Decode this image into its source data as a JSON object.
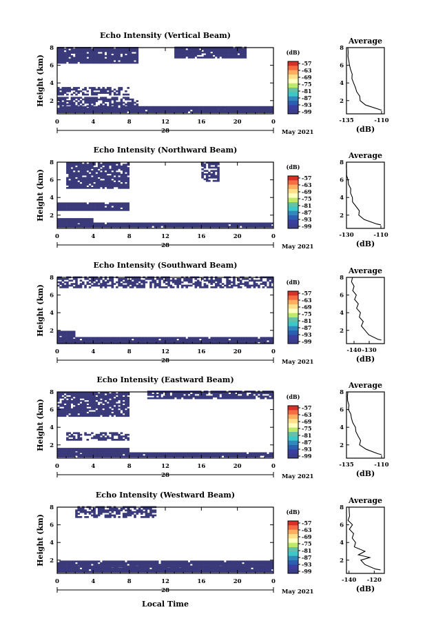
{
  "figure": {
    "time_axis_label": "Local Time",
    "month_label": "May 2021",
    "day_label": "28",
    "height_label": "Height (km)",
    "colorbar_unit": "(dB)",
    "colorbar_ticks": [
      "-57",
      "-63",
      "-69",
      "-75",
      "-81",
      "-87",
      "-93",
      "-99"
    ],
    "colorbar_colors": [
      "#d73027",
      "#f46d43",
      "#fdae61",
      "#fee08b",
      "#ffffbf",
      "#bfe96b",
      "#66c2a5",
      "#3ec7c7",
      "#3288bd",
      "#2b60b0",
      "#3a3fa0",
      "#3b3c8a"
    ],
    "profile_title": "Average",
    "profile_xlabel": "(dB)",
    "echo_color": "#3a3a7a"
  },
  "chart_data": [
    {
      "type": "heatmap",
      "title": "Echo Intensity (Vertical Beam)",
      "xlabel": "",
      "ylabel": "Height (km)",
      "xlim": [
        0,
        24
      ],
      "ylim": [
        0.5,
        8
      ],
      "xticks": [
        "0",
        "4",
        "8",
        "12",
        "16",
        "20",
        "0"
      ],
      "yticks": [
        "2",
        "4",
        "6",
        "8"
      ],
      "echo_regions": [
        {
          "t0": 0,
          "t1": 24,
          "h0": 0.6,
          "h1": 1.0
        },
        {
          "t0": 0,
          "t1": 24,
          "h0": 1.0,
          "h1": 1.3
        },
        {
          "t0": 0,
          "t1": 9,
          "h0": 1.3,
          "h1": 2.3
        },
        {
          "t0": 0,
          "t1": 8,
          "h0": 2.6,
          "h1": 3.5
        },
        {
          "t0": 0,
          "t1": 9,
          "h0": 6.2,
          "h1": 8.0
        },
        {
          "t0": 13,
          "t1": 21,
          "h0": 6.8,
          "h1": 8.0
        }
      ],
      "profile": {
        "xlim": [
          -135,
          -108
        ],
        "xticks": [
          "-135",
          "-110"
        ],
        "yticks": [
          "2",
          "4",
          "6",
          "8"
        ],
        "h": [
          0.9,
          1.0,
          1.5,
          2.0,
          2.5,
          3.0,
          3.5,
          4.0,
          4.5,
          5.0,
          5.5,
          6.0,
          6.5,
          7.0,
          7.5,
          8.0
        ],
        "v": [
          -110,
          -112,
          -122,
          -126,
          -126,
          -128,
          -129,
          -130,
          -131,
          -131,
          -132,
          -133,
          -133,
          -134,
          -134,
          -134
        ]
      }
    },
    {
      "type": "heatmap",
      "title": "Echo Intensity (Northward Beam)",
      "xlabel": "",
      "ylabel": "Height (km)",
      "xlim": [
        0,
        24
      ],
      "ylim": [
        0.5,
        8
      ],
      "xticks": [
        "0",
        "4",
        "8",
        "12",
        "16",
        "20",
        "0"
      ],
      "yticks": [
        "2",
        "4",
        "6",
        "8"
      ],
      "echo_regions": [
        {
          "t0": 0,
          "t1": 24,
          "h0": 0.6,
          "h1": 1.1
        },
        {
          "t0": 0,
          "t1": 4,
          "h0": 1.1,
          "h1": 1.5
        },
        {
          "t0": 0,
          "t1": 8,
          "h0": 2.5,
          "h1": 3.4
        },
        {
          "t0": 1,
          "t1": 8,
          "h0": 5.0,
          "h1": 8.0
        },
        {
          "t0": 16,
          "t1": 18,
          "h0": 5.8,
          "h1": 8.0
        }
      ],
      "profile": {
        "xlim": [
          -130,
          -108
        ],
        "xticks": [
          "-130",
          "-110"
        ],
        "yticks": [
          "2",
          "4",
          "6",
          "8"
        ],
        "h": [
          0.9,
          1.0,
          1.5,
          2.0,
          2.5,
          3.0,
          3.5,
          4.0,
          4.5,
          5.0,
          5.5,
          6.0,
          6.5,
          7.0,
          7.5,
          8.0
        ],
        "v": [
          -110,
          -112,
          -120,
          -123,
          -123,
          -125,
          -126,
          -127,
          -128,
          -128,
          -129,
          -129,
          -130,
          -130,
          -130,
          -130
        ]
      }
    },
    {
      "type": "heatmap",
      "title": "Echo Intensity (Southward Beam)",
      "xlabel": "",
      "ylabel": "Height (km)",
      "xlim": [
        0,
        24
      ],
      "ylim": [
        0.5,
        8
      ],
      "xticks": [
        "0",
        "4",
        "8",
        "12",
        "16",
        "20",
        "0"
      ],
      "yticks": [
        "2",
        "4",
        "6",
        "8"
      ],
      "echo_regions": [
        {
          "t0": 0,
          "t1": 24,
          "h0": 0.5,
          "h1": 1.2
        },
        {
          "t0": 0,
          "t1": 2,
          "h0": 1.2,
          "h1": 1.8
        },
        {
          "t0": 0,
          "t1": 24,
          "h0": 6.8,
          "h1": 8.0
        }
      ],
      "profile": {
        "xlim": [
          -145,
          -120
        ],
        "xticks": [
          "-140",
          "-130"
        ],
        "yticks": [
          "2",
          "4",
          "6",
          "8"
        ],
        "h": [
          0.9,
          1.0,
          1.5,
          2.0,
          2.5,
          3.0,
          3.5,
          4.0,
          4.5,
          5.0,
          5.5,
          6.0,
          6.5,
          7.0,
          7.5,
          8.0
        ],
        "v": [
          -122,
          -125,
          -130,
          -133,
          -135,
          -134,
          -137,
          -136,
          -138,
          -137,
          -140,
          -139,
          -141,
          -140,
          -142,
          -141
        ]
      }
    },
    {
      "type": "heatmap",
      "title": "Echo Intensity (Eastward Beam)",
      "xlabel": "",
      "ylabel": "Height (km)",
      "xlim": [
        0,
        24
      ],
      "ylim": [
        0.5,
        8
      ],
      "xticks": [
        "0",
        "4",
        "8",
        "12",
        "16",
        "20",
        "0"
      ],
      "yticks": [
        "2",
        "4",
        "6",
        "8"
      ],
      "echo_regions": [
        {
          "t0": 0,
          "t1": 24,
          "h0": 0.6,
          "h1": 1.1
        },
        {
          "t0": 0,
          "t1": 8,
          "h0": 1.1,
          "h1": 1.6
        },
        {
          "t0": 1,
          "t1": 8,
          "h0": 2.5,
          "h1": 3.4
        },
        {
          "t0": 0,
          "t1": 8,
          "h0": 5.2,
          "h1": 8.0
        },
        {
          "t0": 10,
          "t1": 24,
          "h0": 7.2,
          "h1": 8.0
        }
      ],
      "profile": {
        "xlim": [
          -135,
          -108
        ],
        "xticks": [
          "-135",
          "-110"
        ],
        "yticks": [
          "2",
          "4",
          "6",
          "8"
        ],
        "h": [
          0.9,
          1.0,
          1.5,
          2.0,
          2.5,
          3.0,
          3.5,
          4.0,
          4.5,
          5.0,
          5.5,
          6.0,
          6.5,
          7.0,
          7.5,
          8.0
        ],
        "v": [
          -110,
          -112,
          -121,
          -125,
          -125,
          -127,
          -128,
          -129,
          -130,
          -131,
          -132,
          -133,
          -133,
          -134,
          -134,
          -134
        ]
      }
    },
    {
      "type": "heatmap",
      "title": "Echo Intensity (Westward Beam)",
      "xlabel": "Local Time",
      "ylabel": "Height (km)",
      "xlim": [
        0,
        24
      ],
      "ylim": [
        0.5,
        8
      ],
      "xticks": [
        "0",
        "4",
        "8",
        "12",
        "16",
        "20",
        "0"
      ],
      "yticks": [
        "2",
        "4",
        "6",
        "8"
      ],
      "echo_regions": [
        {
          "t0": 0,
          "t1": 24,
          "h0": 0.6,
          "h1": 1.2
        },
        {
          "t0": 0,
          "t1": 24,
          "h0": 1.2,
          "h1": 1.8
        },
        {
          "t0": 2,
          "t1": 11,
          "h0": 6.8,
          "h1": 8.0
        }
      ],
      "profile": {
        "xlim": [
          -142,
          -112
        ],
        "xticks": [
          "-140",
          "-120"
        ],
        "yticks": [
          "2",
          "4",
          "6",
          "8"
        ],
        "h": [
          0.9,
          1.0,
          1.5,
          2.0,
          2.3,
          2.6,
          3.0,
          3.5,
          4.0,
          4.5,
          5.0,
          5.5,
          6.0,
          6.5,
          7.0,
          7.5,
          8.0
        ],
        "v": [
          -115,
          -120,
          -127,
          -130,
          -124,
          -133,
          -128,
          -136,
          -134,
          -138,
          -137,
          -139,
          -138,
          -140,
          -139,
          -140,
          -140
        ]
      }
    }
  ]
}
